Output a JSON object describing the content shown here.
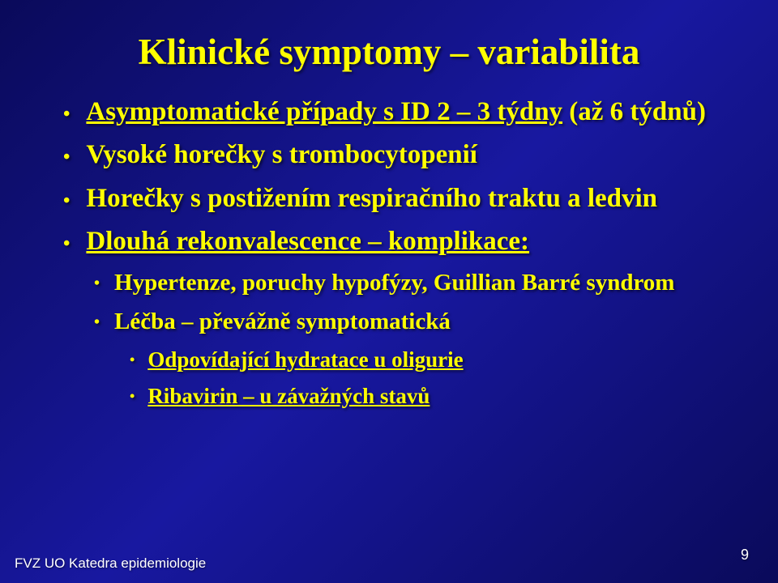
{
  "title": "Klinické symptomy – variabilita",
  "main": [
    {
      "pre": "",
      "underlined": "Asymptomatické případy s ID 2 – 3 týdny",
      "post": " (až 6 týdnů)"
    },
    {
      "pre": "Vysoké horečky s trombocytopenií",
      "underlined": "",
      "post": ""
    },
    {
      "pre": "Horečky s postižením respiračního traktu a ledvin",
      "underlined": "",
      "post": ""
    },
    {
      "pre": "",
      "underlined": "Dlouhá rekonvalescence – komplikace:",
      "post": ""
    }
  ],
  "sub": [
    {
      "text": "Hypertenze, poruchy hypofýzy, Guillian Barré syndrom"
    },
    {
      "text": "Léčba – převážně symptomatická"
    }
  ],
  "subsub": [
    {
      "pre": "",
      "underlined": "Odpovídající hydratace u oligurie",
      "post": ""
    },
    {
      "pre": "",
      "underlined": "Ribavirin – u závažných stavů",
      "post": ""
    }
  ],
  "footer": "FVZ UO Katedra epidemiologie",
  "page": "9",
  "colors": {
    "text": "#ffff00",
    "footer": "#ffffff",
    "bg_start": "#0a0a5a",
    "bg_mid": "#1818a0"
  }
}
